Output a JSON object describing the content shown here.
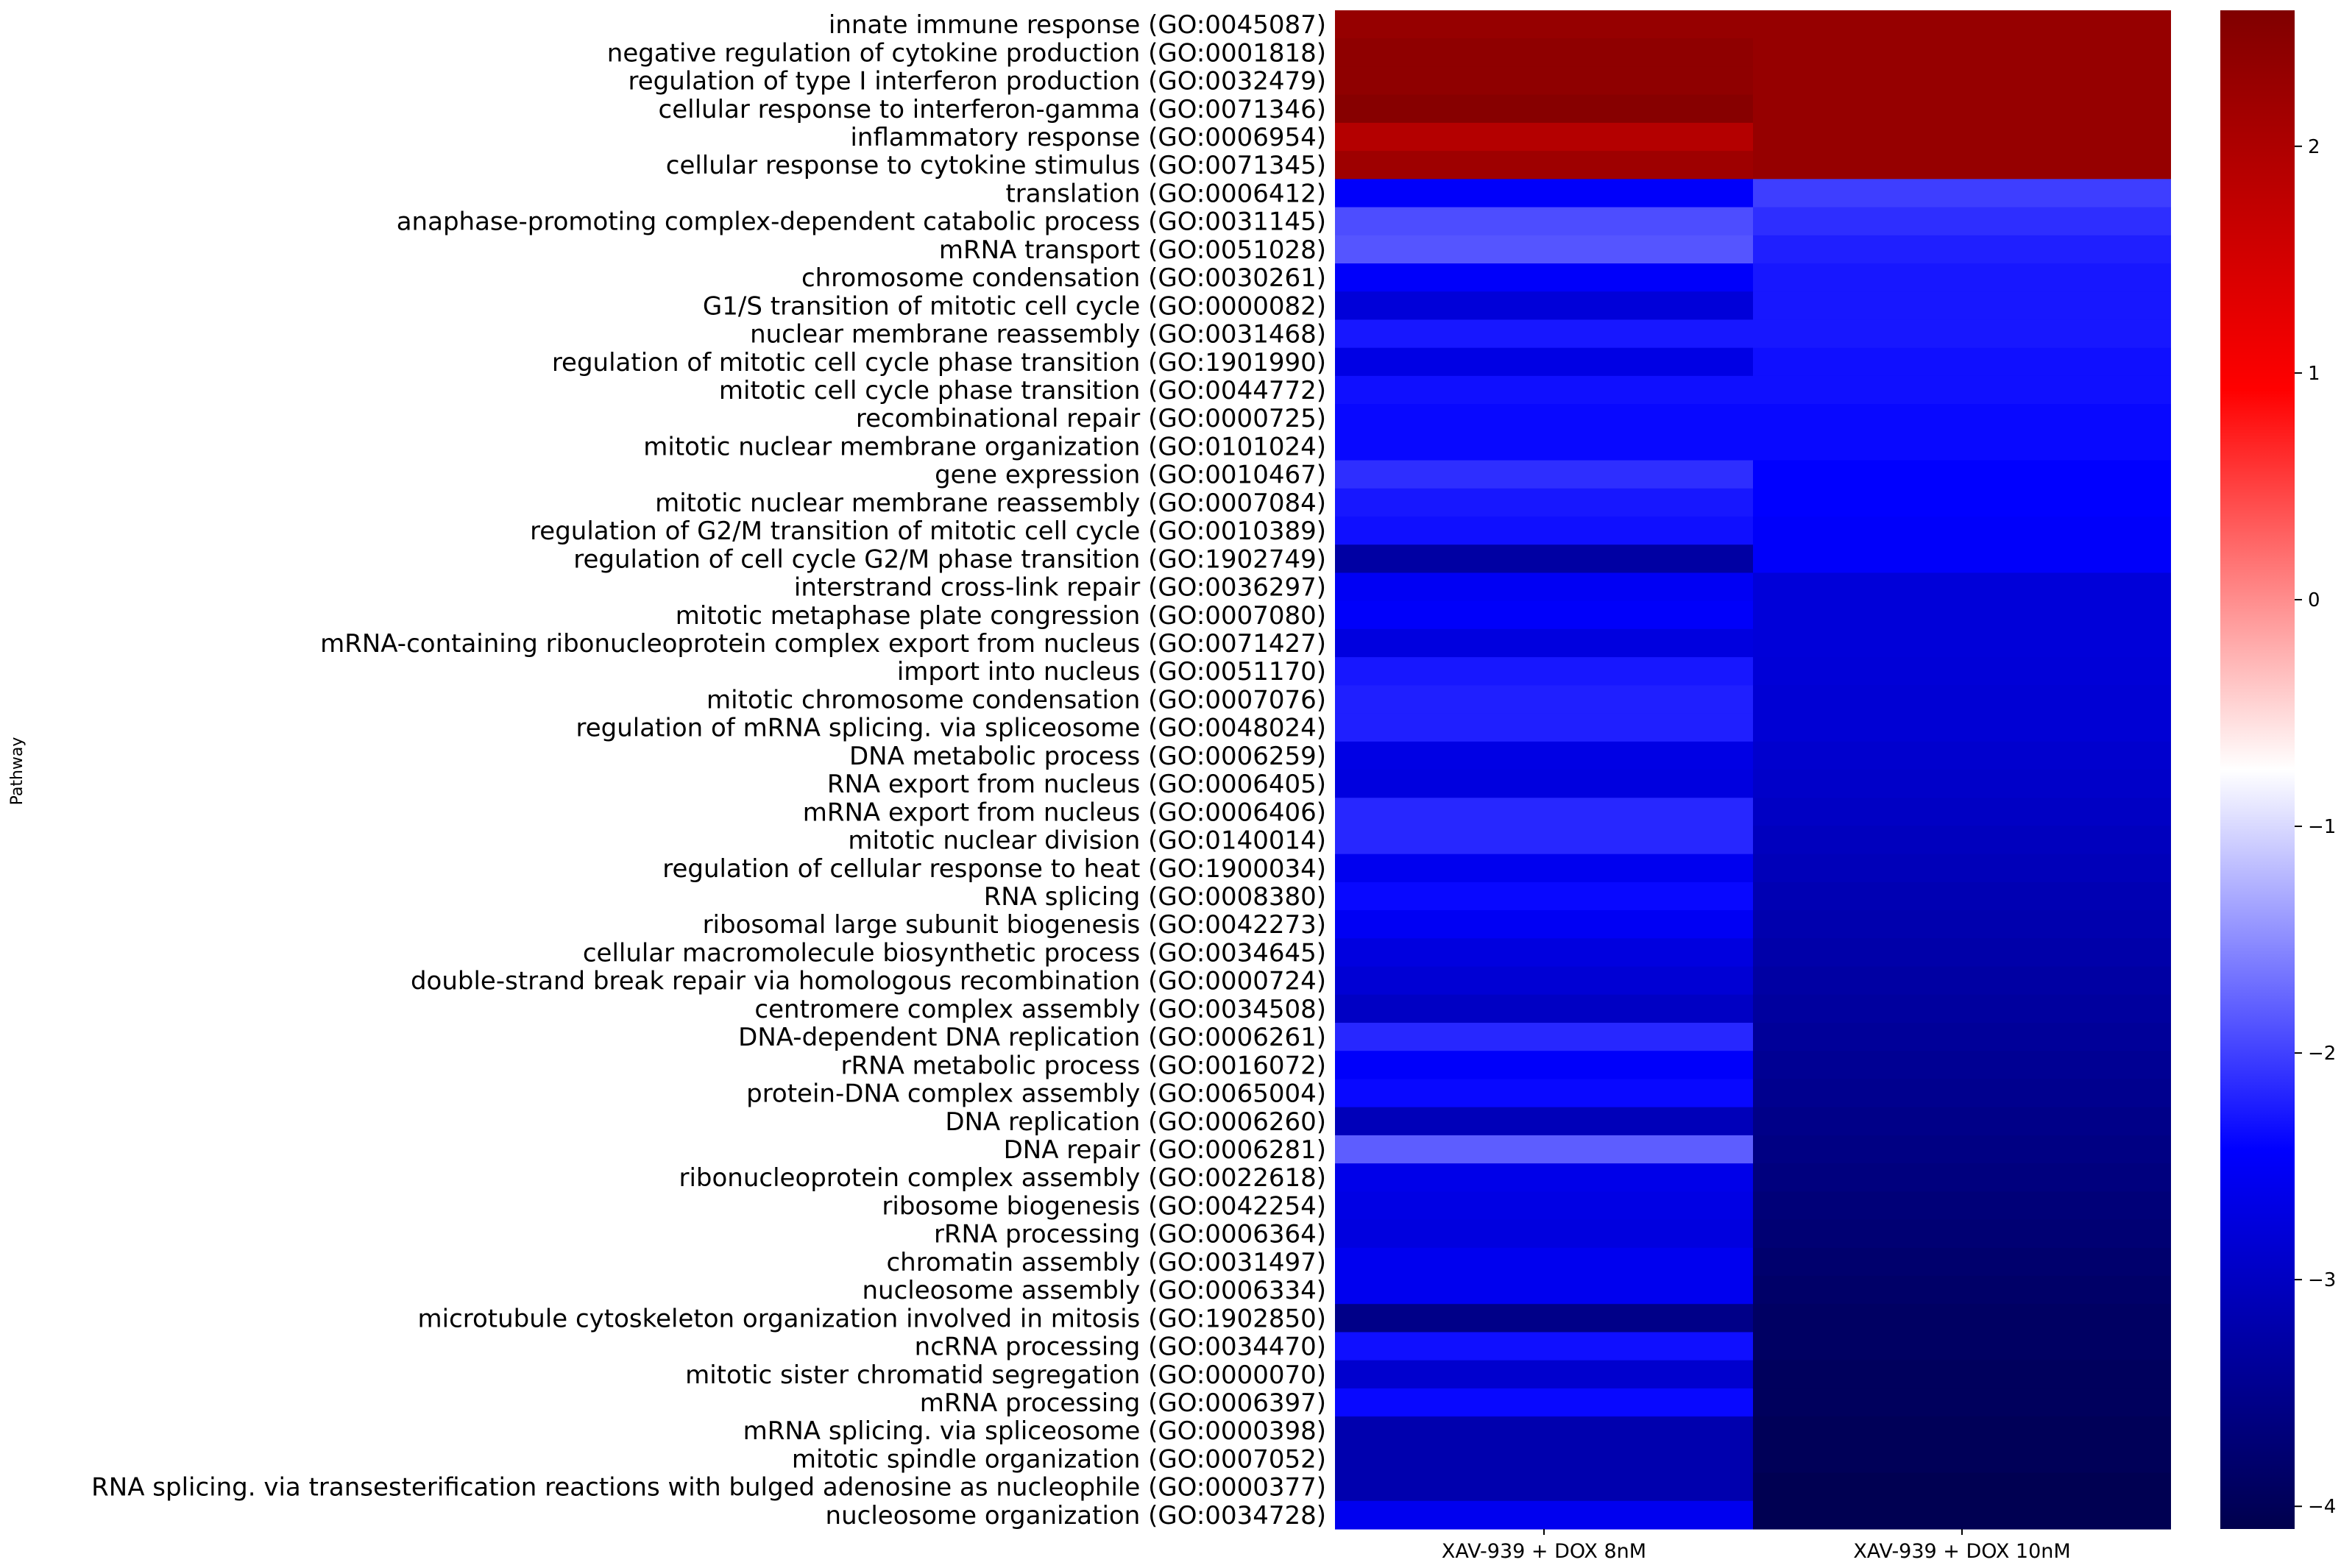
{
  "chart_data": {
    "type": "heatmap",
    "ylabel": "Pathway",
    "columns": [
      "XAV-939 + DOX 8nM",
      "XAV-939 + DOX 10nM"
    ],
    "rows": [
      {
        "label": "innate immune response (GO:0045087)",
        "values": [
          2.3,
          2.3
        ]
      },
      {
        "label": "negative regulation of cytokine production (GO:0001818)",
        "values": [
          2.4,
          2.3
        ]
      },
      {
        "label": "regulation of type I interferon production (GO:0032479)",
        "values": [
          2.4,
          2.3
        ]
      },
      {
        "label": "cellular response to interferon-gamma (GO:0071346)",
        "values": [
          2.5,
          2.3
        ]
      },
      {
        "label": "inflammatory response (GO:0006954)",
        "values": [
          1.9,
          2.3
        ]
      },
      {
        "label": "cellular response to cytokine stimulus (GO:0071345)",
        "values": [
          2.2,
          2.3
        ]
      },
      {
        "label": "translation (GO:0006412)",
        "values": [
          -2.5,
          -2.05
        ]
      },
      {
        "label": "anaphase-promoting complex-dependent catabolic process (GO:0031145)",
        "values": [
          -1.95,
          -2.15
        ]
      },
      {
        "label": "mRNA transport (GO:0051028)",
        "values": [
          -1.9,
          -2.25
        ]
      },
      {
        "label": "chromosome condensation (GO:0030261)",
        "values": [
          -2.5,
          -2.3
        ]
      },
      {
        "label": "G1/S transition of mitotic cell cycle (GO:0000082)",
        "values": [
          -2.8,
          -2.3
        ]
      },
      {
        "label": "nuclear membrane reassembly (GO:0031468)",
        "values": [
          -2.3,
          -2.3
        ]
      },
      {
        "label": "regulation of mitotic cell cycle phase transition (GO:1901990)",
        "values": [
          -2.7,
          -2.35
        ]
      },
      {
        "label": "mitotic cell cycle phase transition (GO:0044772)",
        "values": [
          -2.35,
          -2.35
        ]
      },
      {
        "label": "recombinational repair (GO:0000725)",
        "values": [
          -2.4,
          -2.4
        ]
      },
      {
        "label": "mitotic nuclear membrane organization (GO:0101024)",
        "values": [
          -2.4,
          -2.4
        ]
      },
      {
        "label": "gene expression (GO:0010467)",
        "values": [
          -2.15,
          -2.45
        ]
      },
      {
        "label": "mitotic nuclear membrane reassembly (GO:0007084)",
        "values": [
          -2.3,
          -2.45
        ]
      },
      {
        "label": "regulation of G2/M transition of mitotic cell cycle (GO:0010389)",
        "values": [
          -2.35,
          -2.5
        ]
      },
      {
        "label": "regulation of cell cycle G2/M phase transition (GO:1902749)",
        "values": [
          -3.3,
          -2.5
        ]
      },
      {
        "label": "interstrand cross-link repair (GO:0036297)",
        "values": [
          -2.55,
          -2.8
        ]
      },
      {
        "label": "mitotic metaphase plate congression (GO:0007080)",
        "values": [
          -2.5,
          -2.8
        ]
      },
      {
        "label": "mRNA-containing ribonucleoprotein complex export from nucleus (GO:0071427)",
        "values": [
          -2.75,
          -2.8
        ]
      },
      {
        "label": "import into nucleus (GO:0051170)",
        "values": [
          -2.3,
          -2.82
        ]
      },
      {
        "label": "mitotic chromosome condensation (GO:0007076)",
        "values": [
          -2.25,
          -2.85
        ]
      },
      {
        "label": "regulation of mRNA splicing. via spliceosome (GO:0048024)",
        "values": [
          -2.25,
          -2.85
        ]
      },
      {
        "label": "DNA metabolic process (GO:0006259)",
        "values": [
          -2.7,
          -2.9
        ]
      },
      {
        "label": "RNA export from nucleus (GO:0006405)",
        "values": [
          -2.75,
          -2.95
        ]
      },
      {
        "label": "mRNA export from nucleus (GO:0006406)",
        "values": [
          -2.2,
          -3.0
        ]
      },
      {
        "label": "mitotic nuclear division (GO:0140014)",
        "values": [
          -2.2,
          -3.05
        ]
      },
      {
        "label": "regulation of cellular response to heat (GO:1900034)",
        "values": [
          -2.6,
          -3.1
        ]
      },
      {
        "label": "RNA splicing (GO:0008380)",
        "values": [
          -2.4,
          -3.15
        ]
      },
      {
        "label": "ribosomal large subunit biogenesis (GO:0042273)",
        "values": [
          -2.55,
          -3.2
        ]
      },
      {
        "label": "cellular macromolecule biosynthetic process (GO:0034645)",
        "values": [
          -2.75,
          -3.25
        ]
      },
      {
        "label": "double-strand break repair via homologous recombination (GO:0000724)",
        "values": [
          -2.85,
          -3.3
        ]
      },
      {
        "label": "centromere complex assembly (GO:0034508)",
        "values": [
          -3.0,
          -3.35
        ]
      },
      {
        "label": "DNA-dependent DNA replication (GO:0006261)",
        "values": [
          -2.2,
          -3.4
        ]
      },
      {
        "label": "rRNA metabolic process (GO:0016072)",
        "values": [
          -2.5,
          -3.45
        ]
      },
      {
        "label": "protein-DNA complex assembly (GO:0065004)",
        "values": [
          -2.4,
          -3.5
        ]
      },
      {
        "label": "DNA replication (GO:0006260)",
        "values": [
          -3.1,
          -3.55
        ]
      },
      {
        "label": "DNA repair (GO:0006281)",
        "values": [
          -1.85,
          -3.6
        ]
      },
      {
        "label": "ribonucleoprotein complex assembly (GO:0022618)",
        "values": [
          -2.65,
          -3.65
        ]
      },
      {
        "label": "ribosome biogenesis (GO:0042254)",
        "values": [
          -2.7,
          -3.7
        ]
      },
      {
        "label": "rRNA processing (GO:0006364)",
        "values": [
          -2.75,
          -3.75
        ]
      },
      {
        "label": "chromatin assembly (GO:0031497)",
        "values": [
          -2.6,
          -3.8
        ]
      },
      {
        "label": "nucleosome assembly (GO:0006334)",
        "values": [
          -2.6,
          -3.85
        ]
      },
      {
        "label": "microtubule cytoskeleton organization involved in mitosis (GO:1902850)",
        "values": [
          -3.55,
          -3.9
        ]
      },
      {
        "label": "ncRNA processing (GO:0034470)",
        "values": [
          -2.35,
          -3.9
        ]
      },
      {
        "label": "mitotic sister chromatid segregation (GO:0000070)",
        "values": [
          -2.9,
          -3.95
        ]
      },
      {
        "label": "mRNA processing (GO:0006397)",
        "values": [
          -2.4,
          -3.95
        ]
      },
      {
        "label": "mRNA splicing. via spliceosome (GO:0000398)",
        "values": [
          -3.2,
          -4.0
        ]
      },
      {
        "label": "mitotic spindle organization (GO:0007052)",
        "values": [
          -3.2,
          -4.0
        ]
      },
      {
        "label": "RNA splicing. via transesterification reactions with bulged adenosine as nucleophile (GO:0000377)",
        "values": [
          -3.2,
          -4.05
        ]
      },
      {
        "label": "nucleosome organization (GO:0034728)",
        "values": [
          -2.6,
          -4.05
        ]
      }
    ],
    "colorbar": {
      "vmin": -4.1,
      "vmax": 2.6,
      "center": -0.8,
      "ticks": [
        2,
        1,
        0,
        -1,
        -2,
        -3,
        -4
      ],
      "tick_labels": [
        "2",
        "1",
        "0",
        "−1",
        "−2",
        "−3",
        "−4"
      ],
      "colormap": "seismic"
    }
  }
}
